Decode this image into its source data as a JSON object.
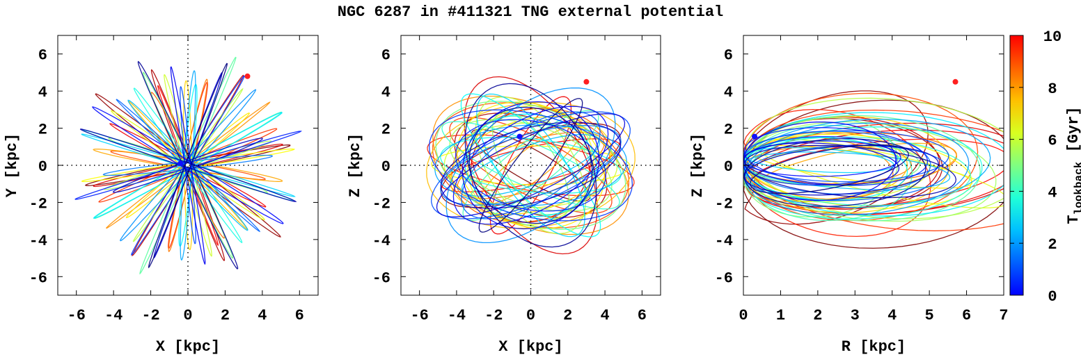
{
  "title": "NGC 6287 in #411321 TNG external potential",
  "colors": {
    "start_marker": "#ff2020",
    "end_marker": "#1010ff",
    "axis": "#000000"
  },
  "colorbar": {
    "label_main": "T",
    "label_sub": "lookback",
    "label_unit": " [Gyr]",
    "range": [
      0,
      10
    ],
    "ticks": [
      {
        "value": 0,
        "label": "0"
      },
      {
        "value": 2,
        "label": "2"
      },
      {
        "value": 4,
        "label": "4"
      },
      {
        "value": 6,
        "label": "6"
      },
      {
        "value": 8,
        "label": "8"
      },
      {
        "value": 10,
        "label": "10"
      }
    ]
  },
  "chart_data": [
    {
      "type": "line",
      "panel": "X-Y projection",
      "xlabel": "X [kpc]",
      "ylabel": "Y [kpc]",
      "xlim": [
        -7,
        7
      ],
      "ylim": [
        -7,
        7
      ],
      "xticks": [
        {
          "value": -6,
          "label": "-6"
        },
        {
          "value": -4,
          "label": "-4"
        },
        {
          "value": -2,
          "label": "-2"
        },
        {
          "value": 0,
          "label": "0"
        },
        {
          "value": 2,
          "label": "2"
        },
        {
          "value": 4,
          "label": "4"
        },
        {
          "value": 6,
          "label": "6"
        }
      ],
      "yticks": [
        {
          "value": -6,
          "label": "-6"
        },
        {
          "value": -4,
          "label": "-4"
        },
        {
          "value": -2,
          "label": "-2"
        },
        {
          "value": 0,
          "label": "0"
        },
        {
          "value": 2,
          "label": "2"
        },
        {
          "value": 4,
          "label": "4"
        },
        {
          "value": 6,
          "label": "6"
        }
      ],
      "color_by": "T_lookback [Gyr]",
      "start_point": {
        "x": 3.2,
        "y": 4.8,
        "t": 10
      },
      "end_point": {
        "x": -0.4,
        "y": 0.1,
        "t": 0
      }
    },
    {
      "type": "line",
      "panel": "X-Z projection",
      "xlabel": "X [kpc]",
      "ylabel": "Z [kpc]",
      "xlim": [
        -7,
        7
      ],
      "ylim": [
        -7,
        7
      ],
      "xticks": [
        {
          "value": -6,
          "label": "-6"
        },
        {
          "value": -4,
          "label": "-4"
        },
        {
          "value": -2,
          "label": "-2"
        },
        {
          "value": 0,
          "label": "0"
        },
        {
          "value": 2,
          "label": "2"
        },
        {
          "value": 4,
          "label": "4"
        },
        {
          "value": 6,
          "label": "6"
        }
      ],
      "yticks": [
        {
          "value": -6,
          "label": "-6"
        },
        {
          "value": -4,
          "label": "-4"
        },
        {
          "value": -2,
          "label": "-2"
        },
        {
          "value": 0,
          "label": "0"
        },
        {
          "value": 2,
          "label": "2"
        },
        {
          "value": 4,
          "label": "4"
        },
        {
          "value": 6,
          "label": "6"
        }
      ],
      "color_by": "T_lookback [Gyr]",
      "start_point": {
        "x": 3.0,
        "y": 4.5,
        "t": 10
      },
      "end_point": {
        "x": -0.6,
        "y": 1.55,
        "t": 0
      }
    },
    {
      "type": "line",
      "panel": "R-Z projection",
      "xlabel": "R [kpc]",
      "ylabel": "Z [kpc]",
      "xlim": [
        0,
        7
      ],
      "ylim": [
        -7,
        7
      ],
      "xticks": [
        {
          "value": 0,
          "label": "0"
        },
        {
          "value": 1,
          "label": "1"
        },
        {
          "value": 2,
          "label": "2"
        },
        {
          "value": 3,
          "label": "3"
        },
        {
          "value": 4,
          "label": "4"
        },
        {
          "value": 5,
          "label": "5"
        },
        {
          "value": 6,
          "label": "6"
        },
        {
          "value": 7,
          "label": "7"
        }
      ],
      "yticks": [
        {
          "value": -6,
          "label": "-6"
        },
        {
          "value": -4,
          "label": "-4"
        },
        {
          "value": -2,
          "label": "-2"
        },
        {
          "value": 0,
          "label": "0"
        },
        {
          "value": 2,
          "label": "2"
        },
        {
          "value": 4,
          "label": "4"
        },
        {
          "value": 6,
          "label": "6"
        }
      ],
      "color_by": "T_lookback [Gyr]",
      "start_point": {
        "x": 5.7,
        "y": 4.5,
        "t": 10
      },
      "end_point": {
        "x": 0.3,
        "y": 1.55,
        "t": 0
      }
    }
  ]
}
